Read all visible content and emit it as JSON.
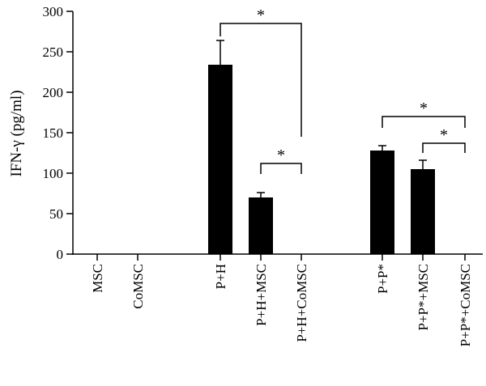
{
  "chart_data": {
    "type": "bar",
    "ylabel": "IFN-γ (pg/ml)",
    "ylim": [
      0,
      300
    ],
    "yticks": [
      0,
      50,
      100,
      150,
      200,
      250,
      300
    ],
    "categories": [
      "MSC",
      "CoMSC",
      "P+H",
      "P+H+MSC",
      "P+H+CoMSC",
      "P+P*",
      "P+P*+MSC",
      "P+P*+CoMSC"
    ],
    "values": [
      0,
      0,
      234,
      70,
      0,
      128,
      105,
      0
    ],
    "errors": [
      0,
      0,
      30,
      6,
      0,
      6,
      11,
      0
    ],
    "bar_color": "#000000",
    "significance": [
      {
        "from": "P+H",
        "to": "P+H+CoMSC",
        "label": "*"
      },
      {
        "from": "P+H+MSC",
        "to": "P+H+CoMSC",
        "label": "*"
      },
      {
        "from": "P+P*",
        "to": "P+P*+CoMSC",
        "label": "*"
      },
      {
        "from": "P+P*+MSC",
        "to": "P+P*+CoMSC",
        "label": "*"
      }
    ]
  }
}
